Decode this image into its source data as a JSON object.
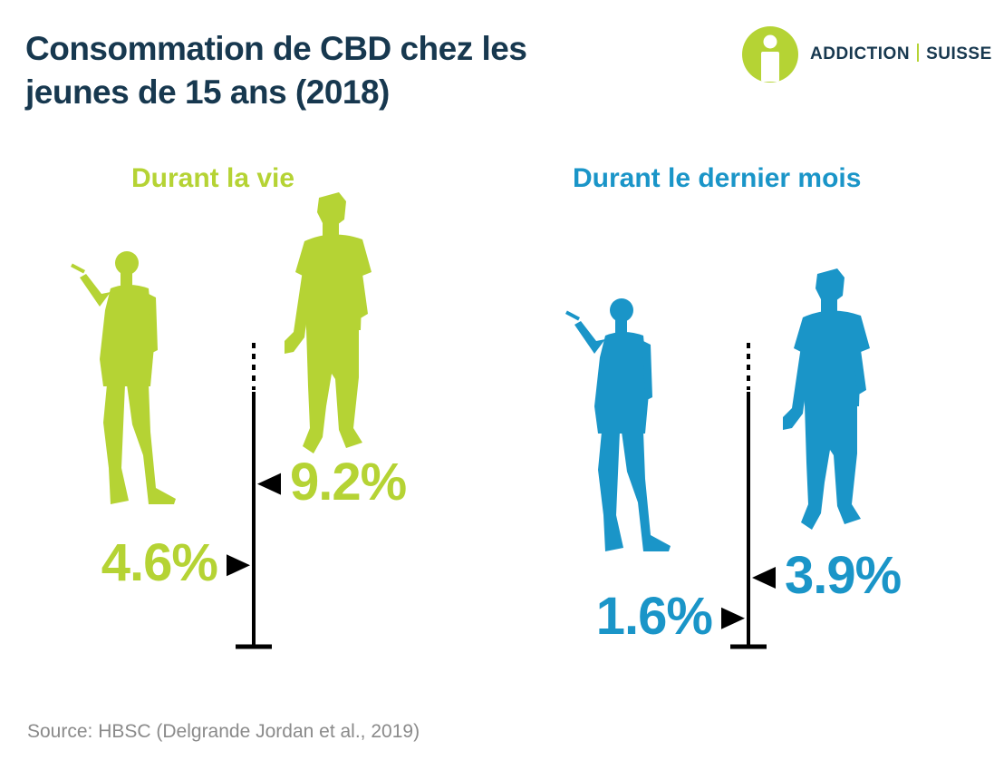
{
  "header": {
    "title": "Consommation de CBD chez les jeunes de 15 ans (2018)"
  },
  "logo": {
    "part1": "ADDICTION",
    "part2": "SUISSE"
  },
  "colors": {
    "green": "#b5d334",
    "blue": "#1a95c8",
    "navy": "#17384f",
    "gray": "#8a8a8a"
  },
  "chart_data": [
    {
      "type": "bar",
      "title": "Durant la vie",
      "categories": [
        "girl",
        "boy"
      ],
      "values": [
        4.6,
        9.2
      ],
      "value_labels": [
        "4.6%",
        "9.2%"
      ],
      "color": "#b5d334",
      "unit": "%"
    },
    {
      "type": "bar",
      "title": "Durant le dernier mois",
      "categories": [
        "girl",
        "boy"
      ],
      "values": [
        1.6,
        3.9
      ],
      "value_labels": [
        "1.6%",
        "3.9%"
      ],
      "color": "#1a95c8",
      "unit": "%"
    }
  ],
  "footer": {
    "source": "Source: HBSC (Delgrande Jordan et al., 2019)"
  }
}
